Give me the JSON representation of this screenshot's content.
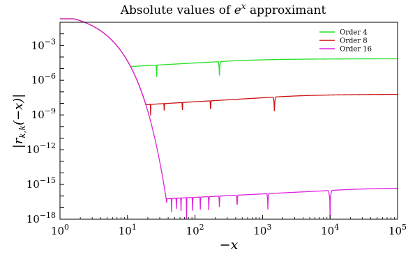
{
  "chart_data": {
    "type": "line",
    "title_prefix": "Absolute values of ",
    "title_math": "e",
    "title_sup": "x",
    "title_suffix": " approximant",
    "xlabel": "−x",
    "ylabel_parts": {
      "open": "|",
      "r": "r",
      "sub": "k,k",
      "arg": "(−x)",
      "close": "|"
    },
    "x_scale": "log",
    "y_scale": "log",
    "xlim": [
      1,
      100000
    ],
    "ylim": [
      1e-18,
      0.1
    ],
    "x_ticks": [
      {
        "base": "10",
        "exp": "0"
      },
      {
        "base": "10",
        "exp": "1"
      },
      {
        "base": "10",
        "exp": "2"
      },
      {
        "base": "10",
        "exp": "3"
      },
      {
        "base": "10",
        "exp": "4"
      },
      {
        "base": "10",
        "exp": "5"
      }
    ],
    "y_ticks": [
      {
        "base": "10",
        "exp": "−3"
      },
      {
        "base": "10",
        "exp": "−6"
      },
      {
        "base": "10",
        "exp": "−9"
      },
      {
        "base": "10",
        "exp": "−12"
      },
      {
        "base": "10",
        "exp": "−15"
      },
      {
        "base": "10",
        "exp": "−18"
      }
    ],
    "grid": false,
    "legend_position": "top-right",
    "series": [
      {
        "name": "Order  4",
        "color": "#22e022",
        "floor": 7e-06,
        "final_level": 4e-05,
        "zeros": [
          27,
          230
        ],
        "zero_depth": 2.3e-07
      },
      {
        "name": "Order  8",
        "color": "#cc1111",
        "floor": 2.8e-09,
        "final_level": 3.5e-08,
        "zeros": [
          18,
          22,
          35,
          65,
          170,
          1500
        ],
        "zero_depth": 1.8e-10
      },
      {
        "name": "Order  16",
        "color": "#dd22dd",
        "floor": 2e-17,
        "final_level": 3e-16,
        "zeros": [
          38,
          45,
          53,
          62,
          75,
          92,
          120,
          160,
          230,
          420,
          1200,
          10000
        ],
        "zero_depth": 1e-18
      }
    ]
  }
}
